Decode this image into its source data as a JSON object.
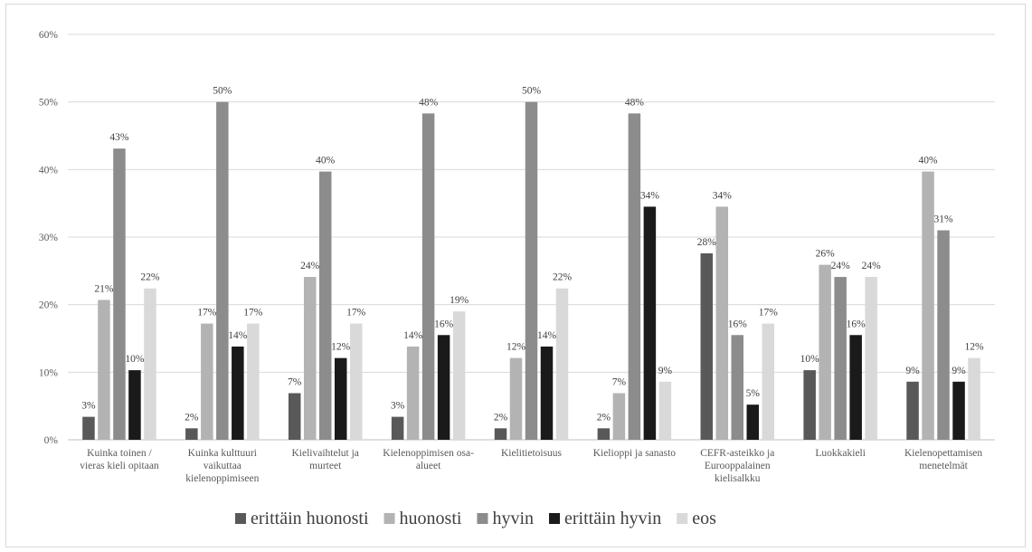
{
  "chart_data": {
    "type": "bar",
    "title": "",
    "xlabel": "",
    "ylabel": "",
    "ylim": [
      0,
      0.6
    ],
    "yticks": [
      "0%",
      "10%",
      "20%",
      "30%",
      "40%",
      "50%",
      "60%"
    ],
    "grid": true,
    "legend_position": "bottom",
    "categories": [
      [
        "Kuinka toinen /",
        "vieras kieli opitaan"
      ],
      [
        "Kuinka kulttuuri",
        "vaikuttaa",
        "kielenoppimiseen"
      ],
      [
        "Kielivaihtelut ja",
        "murteet"
      ],
      [
        "Kielenoppimisen osa-",
        "alueet"
      ],
      [
        "Kielitietoisuus"
      ],
      [
        "Kielioppi ja sanasto"
      ],
      [
        "CEFR-asteikko ja",
        "Eurooppalainen",
        "kielisalkku"
      ],
      [
        "Luokkakieli"
      ],
      [
        "Kielenopettamisen",
        "menetelmät"
      ]
    ],
    "series": [
      {
        "name": "erittäin huonosti",
        "color": "#595959",
        "values": [
          0.034,
          0.017,
          0.069,
          0.034,
          0.017,
          0.017,
          0.276,
          0.103,
          0.086
        ],
        "labels": [
          "3%",
          "2%",
          "7%",
          "3%",
          "2%",
          "2%",
          "28%",
          "10%",
          "9%"
        ]
      },
      {
        "name": "huonosti",
        "color": "#b3b3b3",
        "values": [
          0.207,
          0.172,
          0.241,
          0.138,
          0.121,
          0.069,
          0.345,
          0.259,
          0.397
        ],
        "labels": [
          "21%",
          "17%",
          "24%",
          "14%",
          "12%",
          "7%",
          "34%",
          "26%",
          "40%"
        ]
      },
      {
        "name": "hyvin",
        "color": "#8c8c8c",
        "values": [
          0.431,
          0.5,
          0.397,
          0.483,
          0.5,
          0.483,
          0.155,
          0.241,
          0.31
        ],
        "labels": [
          "43%",
          "50%",
          "40%",
          "48%",
          "50%",
          "48%",
          "16%",
          "24%",
          "31%"
        ]
      },
      {
        "name": "erittäin hyvin",
        "color": "#1a1a1a",
        "values": [
          0.103,
          0.138,
          0.121,
          0.155,
          0.138,
          0.345,
          0.052,
          0.155,
          0.086
        ],
        "labels": [
          "10%",
          "14%",
          "12%",
          "16%",
          "14%",
          "34%",
          "5%",
          "16%",
          "9%"
        ]
      },
      {
        "name": "eos",
        "color": "#d9d9d9",
        "values": [
          0.224,
          0.172,
          0.172,
          0.19,
          0.224,
          0.086,
          0.172,
          0.241,
          0.121
        ],
        "labels": [
          "22%",
          "17%",
          "17%",
          "19%",
          "22%",
          "9%",
          "17%",
          "24%",
          "12%"
        ]
      }
    ]
  }
}
